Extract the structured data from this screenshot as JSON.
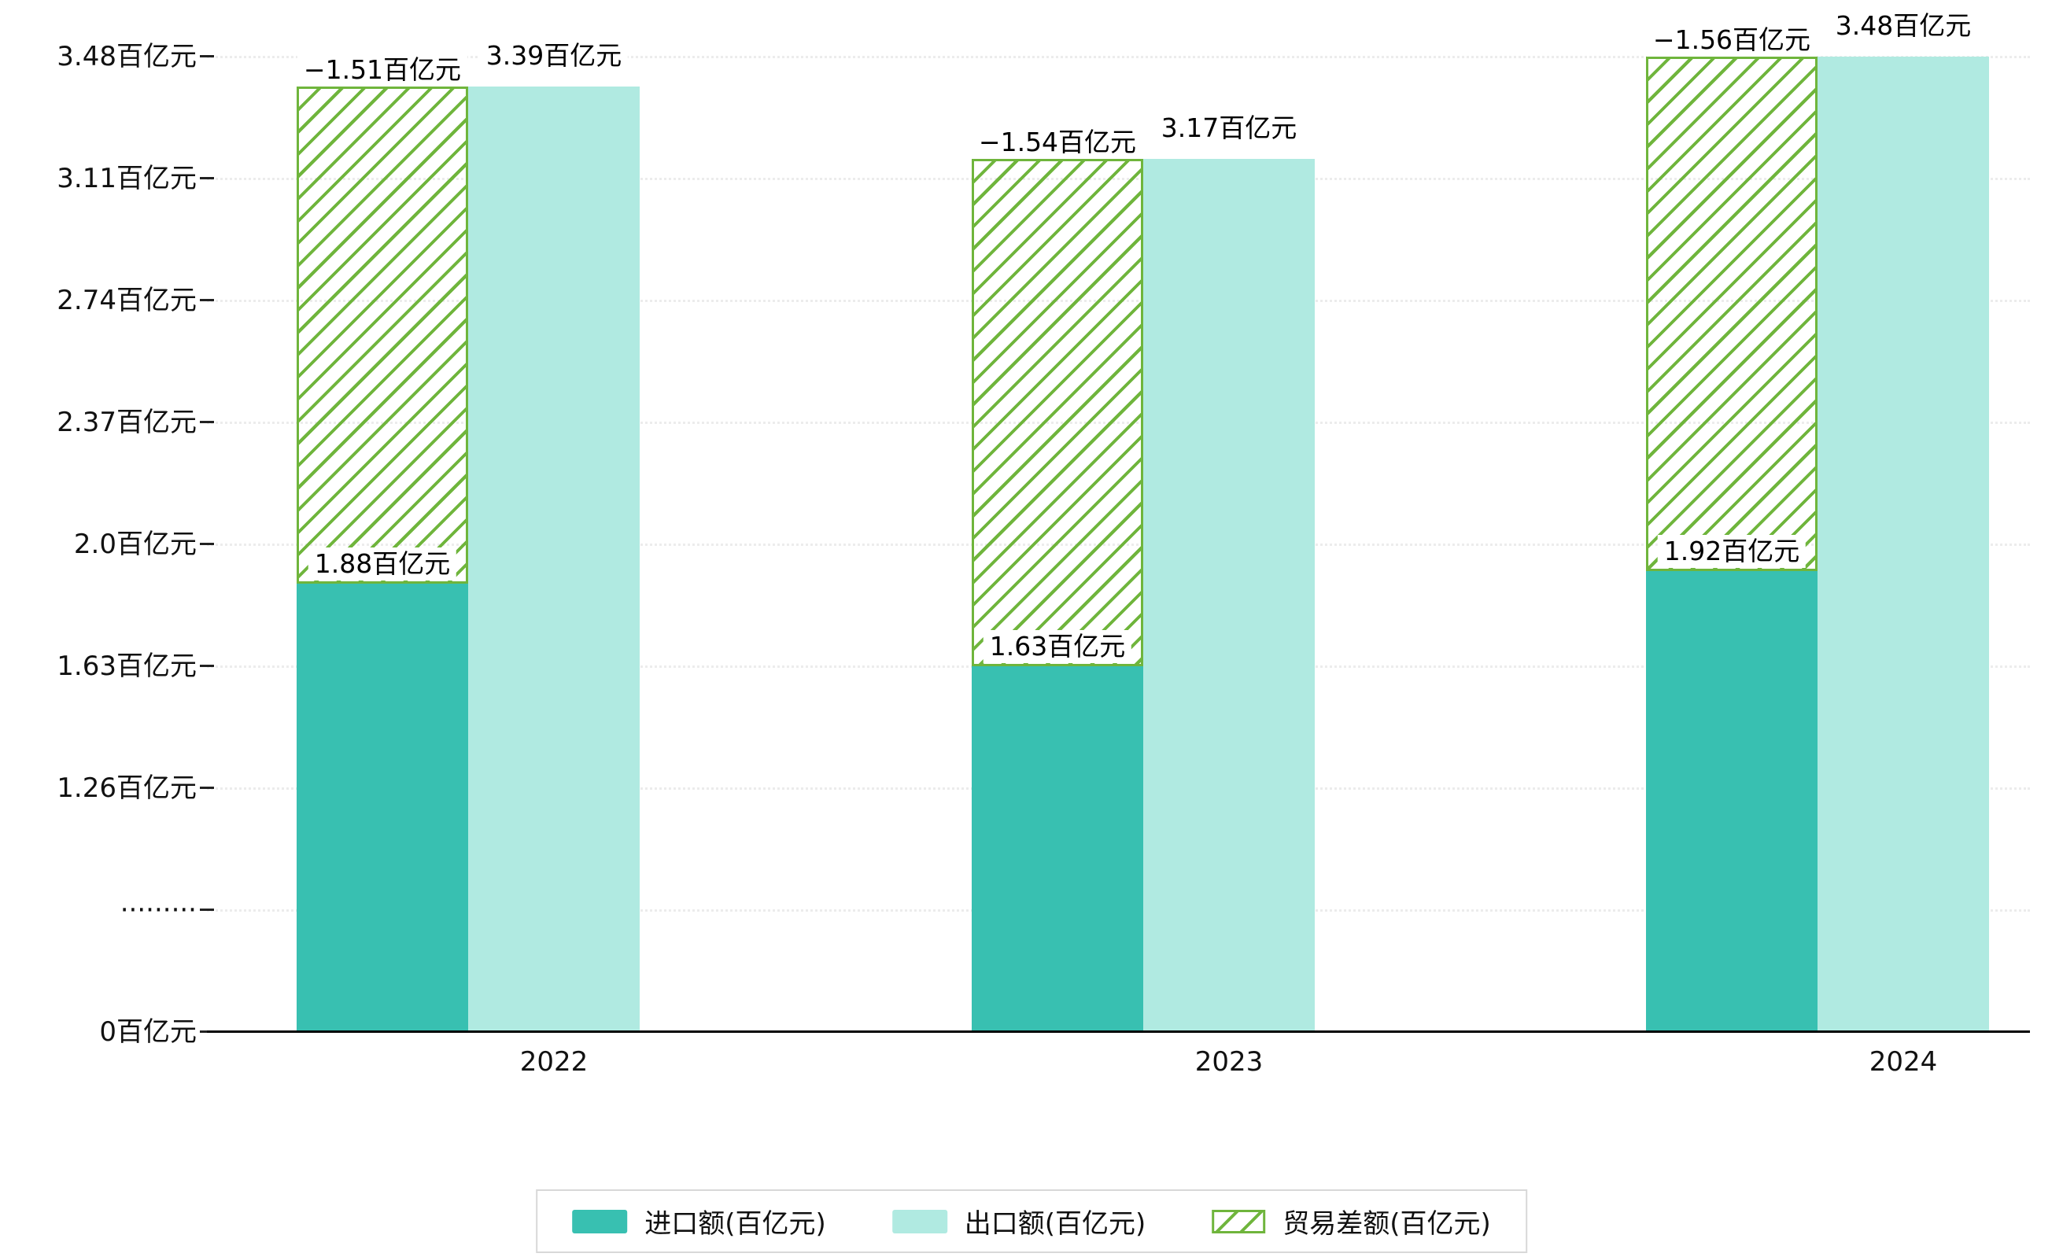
{
  "chart_data": {
    "type": "bar",
    "title": "",
    "categories": [
      "2022",
      "2023",
      "2024"
    ],
    "unit": "百亿元",
    "series": [
      {
        "name": "进口额(百亿元)",
        "values": [
          1.88,
          1.63,
          1.92
        ],
        "labels": [
          "1.88百亿元",
          "1.63百亿元",
          "1.92百亿元"
        ],
        "style": "solid"
      },
      {
        "name": "出口额(百亿元)",
        "values": [
          3.39,
          3.17,
          3.48
        ],
        "labels": [
          "3.39百亿元",
          "3.17百亿元",
          "3.48百亿元"
        ],
        "style": "solid"
      },
      {
        "name": "贸易差额(百亿元)",
        "values": [
          -1.51,
          -1.54,
          -1.56
        ],
        "labels": [
          "−1.51百亿元",
          "−1.54百亿元",
          "−1.56百亿元"
        ],
        "style": "hatched"
      }
    ],
    "y_axis": {
      "tick_labels": [
        "3.48百亿元",
        "3.11百亿元",
        "2.74百亿元",
        "2.37百亿元",
        "2.0百亿元",
        "1.63百亿元",
        "1.26百亿元",
        "·········",
        "0百亿元"
      ],
      "tick_values": [
        3.48,
        3.11,
        2.74,
        2.37,
        2.0,
        1.63,
        1.26,
        null,
        0
      ],
      "axis_break": true
    },
    "x_axis": {
      "tick_labels": [
        "2022",
        "2023",
        "2024"
      ]
    },
    "legend": {
      "position": "bottom",
      "entries": [
        "进口额(百亿元)",
        "出口额(百亿元)",
        "贸易差额(百亿元)"
      ]
    },
    "grid": true,
    "colors": {
      "import": "#38c0b1",
      "export": "#b0eae1",
      "balance": "#6fb53c",
      "gridline": "#ececec",
      "axis": "#000000",
      "background": "#ffffff"
    }
  }
}
